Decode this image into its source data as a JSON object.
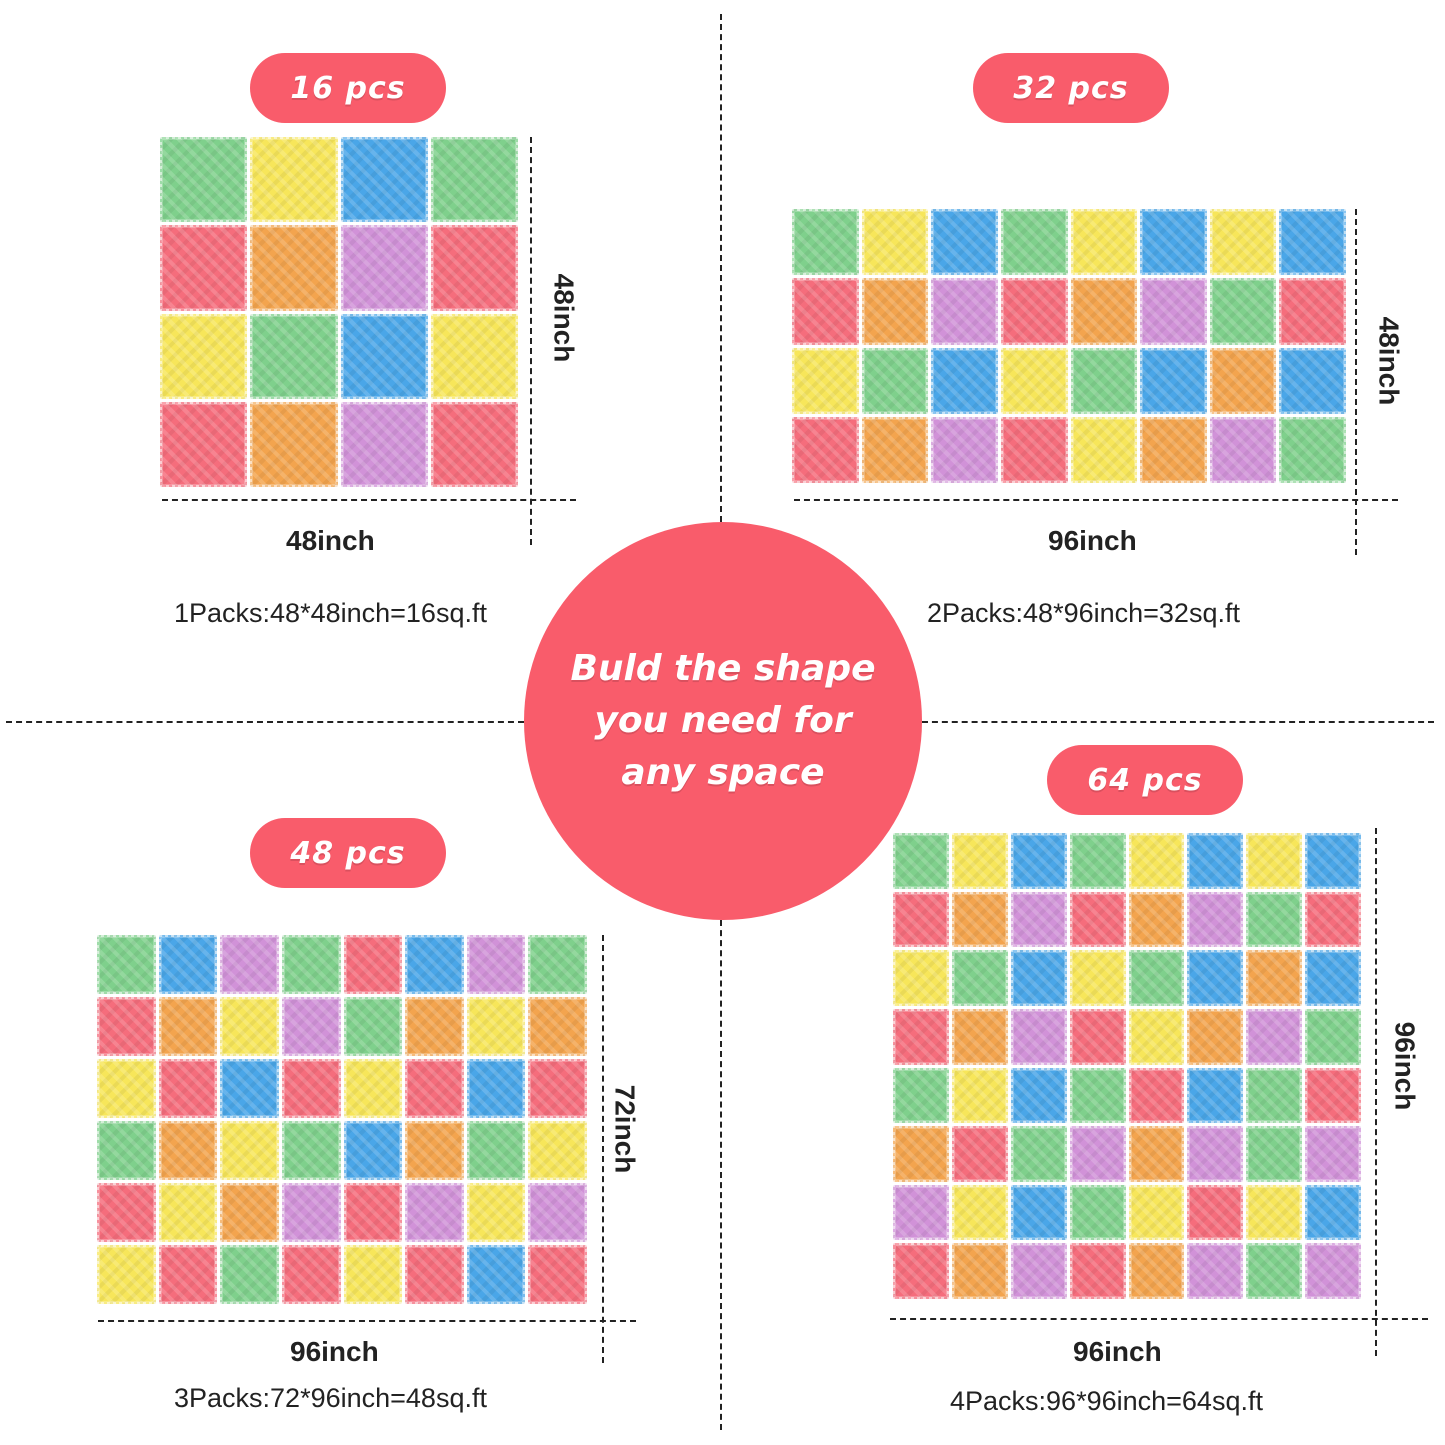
{
  "center": {
    "lines": [
      "Buld the shape",
      "you need for",
      "any space"
    ]
  },
  "panels": [
    {
      "count_label": "16 pcs",
      "width_label": "48inch",
      "height_label": "48inch",
      "caption": "1Packs:48*48inch=16sq.ft",
      "rows": 4,
      "cols": 4,
      "tiles": [
        "green",
        "yellow",
        "blue",
        "green",
        "red",
        "orange",
        "purple",
        "red",
        "yellow",
        "green",
        "blue",
        "yellow",
        "red",
        "orange",
        "purple",
        "red"
      ]
    },
    {
      "count_label": "32 pcs",
      "width_label": "96inch",
      "height_label": "48inch",
      "caption": "2Packs:48*96inch=32sq.ft",
      "rows": 4,
      "cols": 8,
      "tiles": [
        "green",
        "yellow",
        "blue",
        "green",
        "yellow",
        "blue",
        "yellow",
        "blue",
        "red",
        "orange",
        "purple",
        "red",
        "orange",
        "purple",
        "green",
        "red",
        "yellow",
        "green",
        "blue",
        "yellow",
        "green",
        "blue",
        "orange",
        "blue",
        "red",
        "orange",
        "purple",
        "red",
        "yellow",
        "orange",
        "purple",
        "green"
      ]
    },
    {
      "count_label": "48 pcs",
      "width_label": "96inch",
      "height_label": "72inch",
      "caption": "3Packs:72*96inch=48sq.ft",
      "rows": 6,
      "cols": 8,
      "tiles": [
        "green",
        "blue",
        "purple",
        "green",
        "red",
        "blue",
        "purple",
        "green",
        "red",
        "orange",
        "yellow",
        "purple",
        "green",
        "orange",
        "yellow",
        "orange",
        "yellow",
        "red",
        "blue",
        "red",
        "yellow",
        "red",
        "blue",
        "red",
        "green",
        "orange",
        "yellow",
        "green",
        "blue",
        "orange",
        "green",
        "yellow",
        "red",
        "yellow",
        "orange",
        "purple",
        "red",
        "purple",
        "yellow",
        "purple",
        "yellow",
        "red",
        "green",
        "red",
        "yellow",
        "red",
        "blue",
        "red"
      ]
    },
    {
      "count_label": "64 pcs",
      "width_label": "96inch",
      "height_label": "96inch",
      "caption": "4Packs:96*96inch=64sq.ft",
      "rows": 8,
      "cols": 8,
      "tiles": [
        "green",
        "yellow",
        "blue",
        "green",
        "yellow",
        "blue",
        "yellow",
        "blue",
        "red",
        "orange",
        "purple",
        "red",
        "orange",
        "purple",
        "green",
        "red",
        "yellow",
        "green",
        "blue",
        "yellow",
        "green",
        "blue",
        "orange",
        "blue",
        "red",
        "orange",
        "purple",
        "red",
        "yellow",
        "orange",
        "purple",
        "green",
        "green",
        "yellow",
        "blue",
        "green",
        "red",
        "blue",
        "green",
        "red",
        "orange",
        "red",
        "green",
        "purple",
        "orange",
        "purple",
        "green",
        "purple",
        "purple",
        "yellow",
        "blue",
        "green",
        "yellow",
        "red",
        "yellow",
        "blue",
        "red",
        "orange",
        "purple",
        "red",
        "orange",
        "purple",
        "green",
        "purple"
      ]
    }
  ]
}
